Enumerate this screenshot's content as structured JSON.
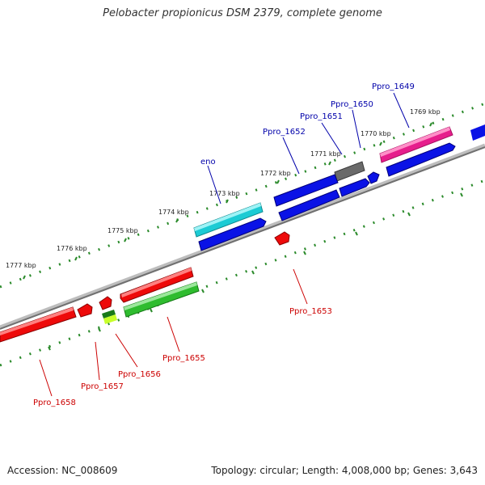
{
  "title": "Pelobacter propionicus DSM 2379, complete genome",
  "footer": {
    "accession": "Accession: NC_008609",
    "summary": "Topology: circular; Length: 4,008,000 bp; Genes: 3,643"
  },
  "tick_labels": [
    "1769 kbp",
    "1770 kbp",
    "1771 kbp",
    "1772 kbp",
    "1773 kbp",
    "1774 kbp",
    "1775 kbp",
    "1776 kbp",
    "1777 kbp"
  ],
  "gene_labels": {
    "forward": [
      "Ppro_1649",
      "Ppro_1650",
      "Ppro_1651",
      "Ppro_1652",
      "eno"
    ],
    "reverse": [
      "Ppro_1653",
      "Ppro_1655",
      "Ppro_1656",
      "Ppro_1657",
      "Ppro_1658"
    ]
  },
  "colors": {
    "backbone": "#8a8a8a",
    "forward_label": "#0000aa",
    "reverse_label": "#cc0000",
    "tick": "#2a8a2a",
    "blue_gene": "#0a12e6",
    "magenta_gene": "#e61e8c",
    "cyan_gene": "#1ccbd4",
    "red_gene": "#ee0a0a",
    "green_gene": "#2fbc2f",
    "gray_gene": "#6a6a6a",
    "yellow_gene": "#c8ff2a"
  }
}
